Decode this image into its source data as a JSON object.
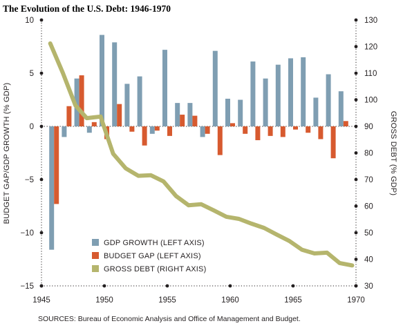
{
  "chart_data": {
    "type": "bar",
    "title": "The Evolution of the U.S. Debt: 1946-1970",
    "ylabel_left": "BUDGET GAP/GDP GROWTH (% GDP)",
    "ylabel_right": "GROSS DEBT (% GDP)",
    "source": "SOURCES: Bureau of Economic Analysis and Office of Management and Budget.",
    "x_ticks": [
      "1945",
      "1950",
      "1955",
      "1960",
      "1965",
      "1970"
    ],
    "y_left_ticks": [
      "10",
      "5",
      "0",
      "−5",
      "−10",
      "−15"
    ],
    "y_right_ticks": [
      "130",
      "120",
      "110",
      "100",
      "90",
      "80",
      "70",
      "60",
      "50",
      "40",
      "30"
    ],
    "ylim_left": [
      -15,
      10
    ],
    "ylim_right": [
      30,
      130
    ],
    "xlim": [
      1945,
      1970
    ],
    "grid": false,
    "legend_position": "bottom-left",
    "x": [
      1946,
      1947,
      1948,
      1949,
      1950,
      1951,
      1952,
      1953,
      1954,
      1955,
      1956,
      1957,
      1958,
      1959,
      1960,
      1961,
      1962,
      1963,
      1964,
      1965,
      1966,
      1967,
      1968,
      1969
    ],
    "series": [
      {
        "name": "GDP GROWTH (LEFT AXIS)",
        "axis": "left",
        "kind": "bar",
        "color": "#7f9eb2",
        "values": [
          -11.6,
          -1.0,
          4.5,
          -0.6,
          8.6,
          7.9,
          4.0,
          4.7,
          -0.7,
          7.2,
          2.2,
          2.2,
          -1.0,
          7.1,
          2.6,
          2.5,
          6.1,
          4.5,
          5.8,
          6.4,
          6.5,
          2.7,
          4.9,
          3.3
        ]
      },
      {
        "name": "BUDGET GAP (LEFT AXIS)",
        "axis": "left",
        "kind": "bar",
        "color": "#d75a2f",
        "values": [
          -7.3,
          1.9,
          4.8,
          0.4,
          -1.2,
          2.1,
          -0.5,
          -1.8,
          -0.4,
          -0.9,
          1.1,
          1.0,
          -0.7,
          -2.7,
          0.3,
          -0.7,
          -1.3,
          -0.9,
          -1.0,
          -0.3,
          -0.6,
          -1.2,
          -3.0,
          0.5
        ]
      },
      {
        "name": "GROSS DEBT (RIGHT AXIS)",
        "axis": "right",
        "kind": "line",
        "color": "#b5b56d",
        "x": [
          1945.7,
          1946.7,
          1947.7,
          1948.6,
          1949.7,
          1950.7,
          1951.7,
          1952.7,
          1953.7,
          1954.7,
          1955.7,
          1956.7,
          1957.7,
          1958.7,
          1959.7,
          1960.7,
          1961.7,
          1962.7,
          1963.7,
          1964.7,
          1965.7,
          1966.7,
          1967.7,
          1968.7,
          1969.7
        ],
        "values": [
          121.2,
          110.1,
          97.9,
          93.1,
          93.7,
          79.7,
          74.2,
          71.4,
          71.6,
          69.3,
          63.8,
          60.3,
          60.7,
          58.4,
          56.0,
          55.2,
          53.4,
          51.8,
          49.3,
          46.9,
          43.6,
          42.2,
          42.5,
          38.6,
          37.7
        ]
      }
    ],
    "legend": [
      {
        "label": "GDP GROWTH (LEFT AXIS)",
        "color": "#7f9eb2",
        "kind": "box"
      },
      {
        "label": "BUDGET GAP (LEFT AXIS)",
        "color": "#d75a2f",
        "kind": "box"
      },
      {
        "label": "GROSS DEBT (RIGHT AXIS)",
        "color": "#b5b56d",
        "kind": "box"
      }
    ]
  }
}
